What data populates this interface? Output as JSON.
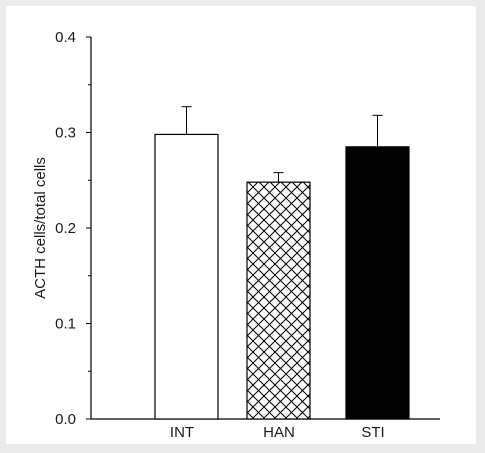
{
  "chart_data": {
    "type": "bar",
    "categories": [
      "INT",
      "HAN",
      "STI"
    ],
    "values": [
      0.298,
      0.248,
      0.285
    ],
    "errors": [
      0.029,
      0.01,
      0.033
    ],
    "bar_styles": [
      "open",
      "crosshatch",
      "solid"
    ],
    "ylabel": "ACTH cells/total cells",
    "xlabel": "",
    "title": "",
    "ylim": [
      0,
      0.4
    ],
    "yticks": [
      "0.0",
      "0.1",
      "0.2",
      "0.3",
      "0.4"
    ],
    "grid": false,
    "legend": "none"
  },
  "colors": {
    "background": "#ebebeb",
    "plot_area": "#ffffff",
    "bar_fill_solid": "#000000",
    "bar_outline": "#000000"
  }
}
